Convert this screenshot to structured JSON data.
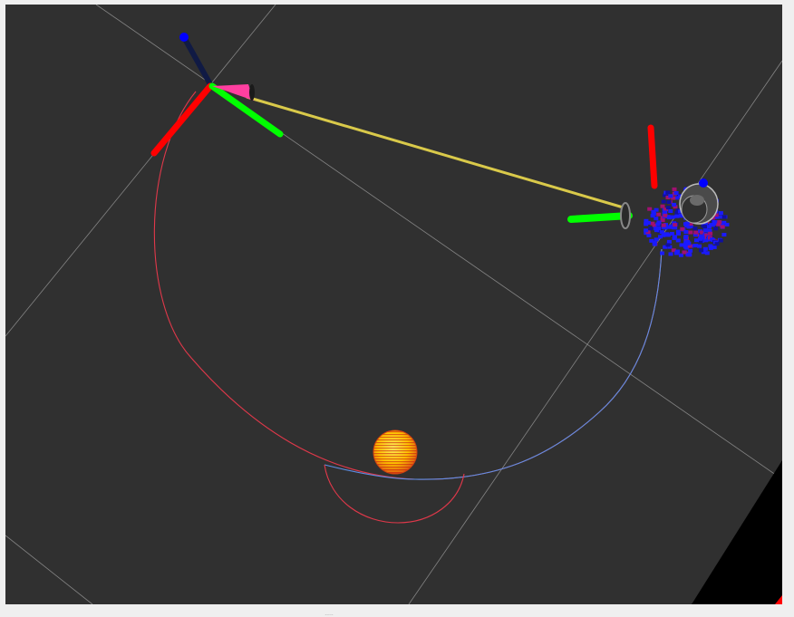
{
  "viewport": {
    "background_color": "#303030",
    "grid_color": "#a0a0a0",
    "arc_colors": {
      "red": "#e0384a",
      "blue": "#5d8fe6"
    },
    "axis_colors": {
      "x": "#ff0000",
      "y": "#00ff00",
      "z": "#0000ff"
    },
    "link_color": "#d9c94a",
    "cone_color": "#ff3fa0",
    "target_color": "#ffe000",
    "robot_color": "#1a1aff"
  },
  "splitter": {
    "grip": "....."
  }
}
